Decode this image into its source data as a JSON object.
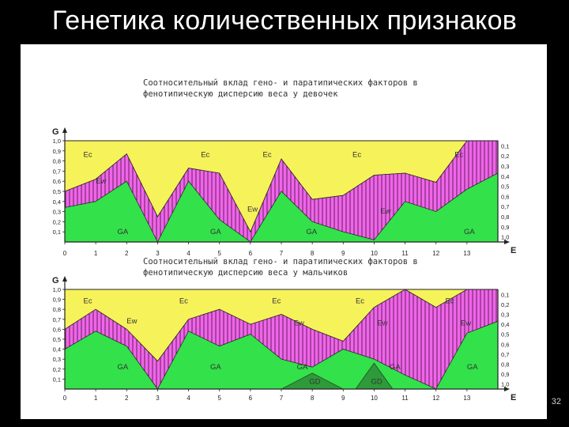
{
  "slide": {
    "title": "Генетика количественных признаков",
    "page_number": "32"
  },
  "colors": {
    "ec": "#f6f25a",
    "ew": "#ee66e8",
    "ga": "#33e14a",
    "gd": "#2e9a3a",
    "hatch": "#6a1a60",
    "axis": "#222222"
  },
  "chart_data": [
    {
      "type": "area",
      "title": "Соотносительный вклад гено- и паратипических факторов в фенотипическую дисперсию веса у девочек",
      "y_left_label": "G",
      "x_label": "E",
      "ylim": [
        0,
        1
      ],
      "grid": false,
      "x": [
        0,
        1,
        2,
        3,
        4,
        5,
        6,
        7,
        8,
        9,
        10,
        11,
        12,
        13,
        14
      ],
      "x_tick_labels": [
        "0",
        "1",
        "2",
        "3",
        "4",
        "5",
        "6",
        "7",
        "8",
        "9",
        "10",
        "11",
        "12",
        "13"
      ],
      "y_left_ticks": [
        "1,0",
        "0,9",
        "0,8",
        "0,7",
        "0,6",
        "0,5",
        "0,4",
        "0,3",
        "0,2",
        "0,1"
      ],
      "y_right_ticks": [
        "0,1",
        "0,2",
        "0,3",
        "0,4",
        "0,5",
        "0,6",
        "0,7",
        "0,8",
        "0,9",
        "1,0"
      ],
      "series": [
        {
          "name": "GA",
          "values": [
            0.34,
            0.4,
            0.6,
            0.0,
            0.6,
            0.22,
            0.0,
            0.5,
            0.2,
            0.1,
            0.02,
            0.4,
            0.3,
            0.52,
            0.68
          ]
        },
        {
          "name": "Ew",
          "values": [
            0.16,
            0.22,
            0.27,
            0.25,
            0.13,
            0.46,
            0.1,
            0.32,
            0.22,
            0.36,
            0.64,
            0.28,
            0.29,
            0.48,
            0.32
          ]
        },
        {
          "name": "Ec",
          "values": [
            0.5,
            0.38,
            0.13,
            0.75,
            0.27,
            0.32,
            0.9,
            0.18,
            0.58,
            0.54,
            0.34,
            0.32,
            0.41,
            0.0,
            0.0
          ]
        }
      ],
      "labels": [
        {
          "text": "Ec",
          "x": 0.6,
          "y": 0.84
        },
        {
          "text": "Ec",
          "x": 4.4,
          "y": 0.84
        },
        {
          "text": "Ec",
          "x": 6.4,
          "y": 0.84
        },
        {
          "text": "Ec",
          "x": 9.3,
          "y": 0.84
        },
        {
          "text": "Ec",
          "x": 12.6,
          "y": 0.84
        },
        {
          "text": "Ew",
          "x": 1.0,
          "y": 0.58
        },
        {
          "text": "Ew",
          "x": 5.9,
          "y": 0.3
        },
        {
          "text": "Ew",
          "x": 10.2,
          "y": 0.28
        },
        {
          "text": "GA",
          "x": 1.7,
          "y": 0.08
        },
        {
          "text": "GA",
          "x": 4.7,
          "y": 0.08
        },
        {
          "text": "GA",
          "x": 7.8,
          "y": 0.08
        },
        {
          "text": "GA",
          "x": 12.9,
          "y": 0.08
        }
      ]
    },
    {
      "type": "area",
      "title": "Соотносительный вклад гено- и паратипических факторов в фенотипическую дисперсию веса у мальчиков",
      "y_left_label": "G",
      "x_label": "E",
      "ylim": [
        0,
        1
      ],
      "grid": false,
      "x": [
        0,
        1,
        2,
        3,
        4,
        5,
        6,
        7,
        8,
        9,
        10,
        11,
        12,
        13,
        14
      ],
      "x_tick_labels": [
        "0",
        "1",
        "2",
        "3",
        "4",
        "5",
        "6",
        "7",
        "8",
        "9",
        "10",
        "11",
        "12",
        "13"
      ],
      "y_left_ticks": [
        "1,0",
        "0,9",
        "0,8",
        "0,7",
        "0,6",
        "0,5",
        "0,4",
        "0,3",
        "0,2",
        "0,1"
      ],
      "y_right_ticks": [
        "0,1",
        "0,2",
        "0,3",
        "0,4",
        "0,5",
        "0,6",
        "0,7",
        "0,8",
        "0,9",
        "1,0"
      ],
      "series": [
        {
          "name": "GA",
          "values": [
            0.4,
            0.58,
            0.43,
            0.0,
            0.58,
            0.43,
            0.55,
            0.3,
            0.22,
            0.4,
            0.3,
            0.14,
            0.0,
            0.56,
            0.68
          ]
        },
        {
          "name": "Ew",
          "values": [
            0.2,
            0.22,
            0.17,
            0.28,
            0.12,
            0.37,
            0.1,
            0.45,
            0.38,
            0.08,
            0.52,
            0.86,
            0.82,
            0.44,
            0.32
          ]
        },
        {
          "name": "Ec",
          "values": [
            0.4,
            0.2,
            0.4,
            0.72,
            0.3,
            0.2,
            0.35,
            0.25,
            0.4,
            0.52,
            0.18,
            0.0,
            0.18,
            0.0,
            0.0
          ]
        }
      ],
      "gd_series": {
        "name": "GD",
        "points": [
          [
            7,
            0
          ],
          [
            8,
            0.16
          ],
          [
            9,
            0
          ],
          [
            9.4,
            0
          ],
          [
            10,
            0.26
          ],
          [
            10.6,
            0
          ]
        ]
      },
      "labels": [
        {
          "text": "Ec",
          "x": 0.6,
          "y": 0.86
        },
        {
          "text": "Ec",
          "x": 3.7,
          "y": 0.86
        },
        {
          "text": "Ec",
          "x": 6.7,
          "y": 0.86
        },
        {
          "text": "Ec",
          "x": 9.4,
          "y": 0.86
        },
        {
          "text": "Ec",
          "x": 12.3,
          "y": 0.86
        },
        {
          "text": "Ew",
          "x": 2.0,
          "y": 0.66
        },
        {
          "text": "Ew",
          "x": 7.4,
          "y": 0.64
        },
        {
          "text": "Ew",
          "x": 10.1,
          "y": 0.64
        },
        {
          "text": "Ew",
          "x": 12.8,
          "y": 0.64
        },
        {
          "text": "GA",
          "x": 1.7,
          "y": 0.2
        },
        {
          "text": "GA",
          "x": 4.7,
          "y": 0.2
        },
        {
          "text": "GA",
          "x": 7.5,
          "y": 0.2
        },
        {
          "text": "GA",
          "x": 10.5,
          "y": 0.2
        },
        {
          "text": "GA",
          "x": 13.0,
          "y": 0.2
        },
        {
          "text": "GD",
          "x": 7.9,
          "y": 0.05
        },
        {
          "text": "GD",
          "x": 9.9,
          "y": 0.05
        }
      ]
    }
  ]
}
